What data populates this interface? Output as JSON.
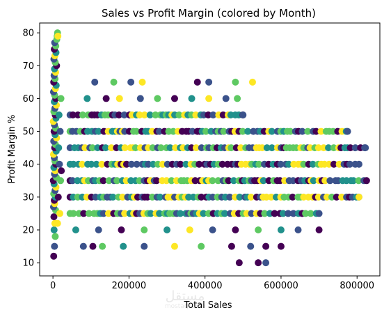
{
  "chart_data": {
    "type": "scatter",
    "title": "Sales vs Profit Margin (colored by Month)",
    "xlabel": "Total Sales",
    "ylabel": "Profit Margin %",
    "xlim": [
      -35000,
      860000
    ],
    "ylim": [
      6,
      83
    ],
    "xticks": [
      0,
      200000,
      400000,
      600000,
      800000
    ],
    "xtick_labels": [
      "0",
      "200000",
      "400000",
      "600000",
      "800000"
    ],
    "yticks": [
      10,
      20,
      30,
      40,
      50,
      60,
      70,
      80
    ],
    "ytick_labels": [
      "10",
      "20",
      "30",
      "40",
      "50",
      "60",
      "70",
      "80"
    ],
    "grid": false,
    "colormap": [
      "#440154",
      "#3b528b",
      "#21918c",
      "#5ec962",
      "#fde725"
    ],
    "points": [
      {
        "x": 2000,
        "y": 12,
        "m": 0
      },
      {
        "x": 4000,
        "y": 15,
        "m": 1
      },
      {
        "x": 6000,
        "y": 18,
        "m": 3
      },
      {
        "x": 3000,
        "y": 20,
        "m": 2
      },
      {
        "x": 5000,
        "y": 22,
        "m": 4
      },
      {
        "x": 2500,
        "y": 24,
        "m": 0
      },
      {
        "x": 7000,
        "y": 26,
        "m": 3
      },
      {
        "x": 1500,
        "y": 27,
        "m": 1
      },
      {
        "x": 4500,
        "y": 28,
        "m": 4
      },
      {
        "x": 3500,
        "y": 29,
        "m": 0
      },
      {
        "x": 6500,
        "y": 30,
        "m": 2
      },
      {
        "x": 2000,
        "y": 31,
        "m": 3
      },
      {
        "x": 5500,
        "y": 32,
        "m": 1
      },
      {
        "x": 8000,
        "y": 33,
        "m": 4
      },
      {
        "x": 3000,
        "y": 34,
        "m": 2
      },
      {
        "x": 1000,
        "y": 35,
        "m": 0
      },
      {
        "x": 9000,
        "y": 36,
        "m": 3
      },
      {
        "x": 4000,
        "y": 37,
        "m": 1
      },
      {
        "x": 6000,
        "y": 38,
        "m": 4
      },
      {
        "x": 2500,
        "y": 39,
        "m": 2
      },
      {
        "x": 7500,
        "y": 40,
        "m": 0
      },
      {
        "x": 5000,
        "y": 41,
        "m": 3
      },
      {
        "x": 3500,
        "y": 42,
        "m": 1
      },
      {
        "x": 1500,
        "y": 43,
        "m": 4
      },
      {
        "x": 8500,
        "y": 44,
        "m": 2
      },
      {
        "x": 4500,
        "y": 45,
        "m": 0
      },
      {
        "x": 6500,
        "y": 46,
        "m": 3
      },
      {
        "x": 2000,
        "y": 47,
        "m": 1
      },
      {
        "x": 9500,
        "y": 48,
        "m": 4
      },
      {
        "x": 5500,
        "y": 49,
        "m": 2
      },
      {
        "x": 3000,
        "y": 50,
        "m": 0
      },
      {
        "x": 7000,
        "y": 51,
        "m": 3
      },
      {
        "x": 4000,
        "y": 52,
        "m": 1
      },
      {
        "x": 1000,
        "y": 53,
        "m": 4
      },
      {
        "x": 8000,
        "y": 54,
        "m": 2
      },
      {
        "x": 6000,
        "y": 55,
        "m": 0
      },
      {
        "x": 2500,
        "y": 56,
        "m": 3
      },
      {
        "x": 5000,
        "y": 57,
        "m": 1
      },
      {
        "x": 9000,
        "y": 58,
        "m": 4
      },
      {
        "x": 3500,
        "y": 59,
        "m": 2
      },
      {
        "x": 7500,
        "y": 60,
        "m": 0
      },
      {
        "x": 4500,
        "y": 61,
        "m": 3
      },
      {
        "x": 1500,
        "y": 62,
        "m": 1
      },
      {
        "x": 6500,
        "y": 63,
        "m": 4
      },
      {
        "x": 8500,
        "y": 64,
        "m": 2
      },
      {
        "x": 2000,
        "y": 65,
        "m": 0
      },
      {
        "x": 5500,
        "y": 66,
        "m": 3
      },
      {
        "x": 3000,
        "y": 67,
        "m": 1
      },
      {
        "x": 7000,
        "y": 68,
        "m": 4
      },
      {
        "x": 4000,
        "y": 69,
        "m": 2
      },
      {
        "x": 9500,
        "y": 70,
        "m": 0
      },
      {
        "x": 6000,
        "y": 71,
        "m": 3
      },
      {
        "x": 2500,
        "y": 72,
        "m": 1
      },
      {
        "x": 5000,
        "y": 73,
        "m": 4
      },
      {
        "x": 8000,
        "y": 74,
        "m": 2
      },
      {
        "x": 3500,
        "y": 75,
        "m": 0
      },
      {
        "x": 7500,
        "y": 76,
        "m": 3
      },
      {
        "x": 4500,
        "y": 77,
        "m": 1
      },
      {
        "x": 10000,
        "y": 78,
        "m": 3
      },
      {
        "x": 11000,
        "y": 79,
        "m": 3
      },
      {
        "x": 12000,
        "y": 80,
        "m": 3
      },
      {
        "x": 13000,
        "y": 79,
        "m": 4
      },
      {
        "x": 15000,
        "y": 45,
        "m": 2
      },
      {
        "x": 17000,
        "y": 40,
        "m": 1
      },
      {
        "x": 20000,
        "y": 35,
        "m": 3
      },
      {
        "x": 14000,
        "y": 30,
        "m": 0
      },
      {
        "x": 18000,
        "y": 25,
        "m": 4
      },
      {
        "x": 16000,
        "y": 55,
        "m": 2
      },
      {
        "x": 19000,
        "y": 50,
        "m": 1
      },
      {
        "x": 21000,
        "y": 60,
        "m": 3
      },
      {
        "x": 22000,
        "y": 38,
        "m": 0
      },
      {
        "x": 12000,
        "y": 22,
        "m": 4
      },
      {
        "x": 80000,
        "y": 15,
        "m": 1
      },
      {
        "x": 105000,
        "y": 15,
        "m": 0
      },
      {
        "x": 130000,
        "y": 15,
        "m": 3
      },
      {
        "x": 185000,
        "y": 15,
        "m": 2
      },
      {
        "x": 240000,
        "y": 15,
        "m": 1
      },
      {
        "x": 320000,
        "y": 15,
        "m": 4
      },
      {
        "x": 390000,
        "y": 15,
        "m": 3
      },
      {
        "x": 470000,
        "y": 15,
        "m": 0
      },
      {
        "x": 520000,
        "y": 15,
        "m": 1
      },
      {
        "x": 560000,
        "y": 15,
        "m": 0
      },
      {
        "x": 600000,
        "y": 15,
        "m": 0
      },
      {
        "x": 490000,
        "y": 10,
        "m": 0
      },
      {
        "x": 540000,
        "y": 10,
        "m": 0
      },
      {
        "x": 560000,
        "y": 10,
        "m": 1
      },
      {
        "x": 110000,
        "y": 65,
        "m": 1
      },
      {
        "x": 160000,
        "y": 65,
        "m": 3
      },
      {
        "x": 205000,
        "y": 65,
        "m": 1
      },
      {
        "x": 235000,
        "y": 65,
        "m": 4
      },
      {
        "x": 380000,
        "y": 65,
        "m": 0
      },
      {
        "x": 410000,
        "y": 65,
        "m": 1
      },
      {
        "x": 480000,
        "y": 65,
        "m": 3
      },
      {
        "x": 525000,
        "y": 65,
        "m": 4
      },
      {
        "x": 90000,
        "y": 60,
        "m": 2
      },
      {
        "x": 140000,
        "y": 60,
        "m": 0
      },
      {
        "x": 175000,
        "y": 60,
        "m": 4
      },
      {
        "x": 230000,
        "y": 60,
        "m": 1
      },
      {
        "x": 275000,
        "y": 60,
        "m": 3
      },
      {
        "x": 320000,
        "y": 60,
        "m": 0
      },
      {
        "x": 365000,
        "y": 60,
        "m": 2
      },
      {
        "x": 410000,
        "y": 60,
        "m": 4
      },
      {
        "x": 455000,
        "y": 60,
        "m": 1
      },
      {
        "x": 485000,
        "y": 60,
        "m": 3
      },
      {
        "x": 60000,
        "y": 20,
        "m": 2
      },
      {
        "x": 120000,
        "y": 20,
        "m": 1
      },
      {
        "x": 180000,
        "y": 20,
        "m": 0
      },
      {
        "x": 240000,
        "y": 20,
        "m": 3
      },
      {
        "x": 300000,
        "y": 20,
        "m": 2
      },
      {
        "x": 360000,
        "y": 20,
        "m": 4
      },
      {
        "x": 420000,
        "y": 20,
        "m": 1
      },
      {
        "x": 480000,
        "y": 20,
        "m": 0
      },
      {
        "x": 540000,
        "y": 20,
        "m": 3
      },
      {
        "x": 600000,
        "y": 20,
        "m": 2
      },
      {
        "x": 645000,
        "y": 20,
        "m": 1
      },
      {
        "x": 700000,
        "y": 20,
        "m": 0
      }
    ],
    "bands": [
      {
        "y": 25,
        "max": 700000
      },
      {
        "y": 30,
        "max": 805000
      },
      {
        "y": 35,
        "max": 825000
      },
      {
        "y": 40,
        "max": 805000
      },
      {
        "y": 45,
        "max": 822000
      },
      {
        "y": 50,
        "max": 775000
      },
      {
        "y": 55,
        "max": 500000
      }
    ]
  },
  "watermark": {
    "main": "مستقل",
    "sub": "mostaql.com"
  }
}
